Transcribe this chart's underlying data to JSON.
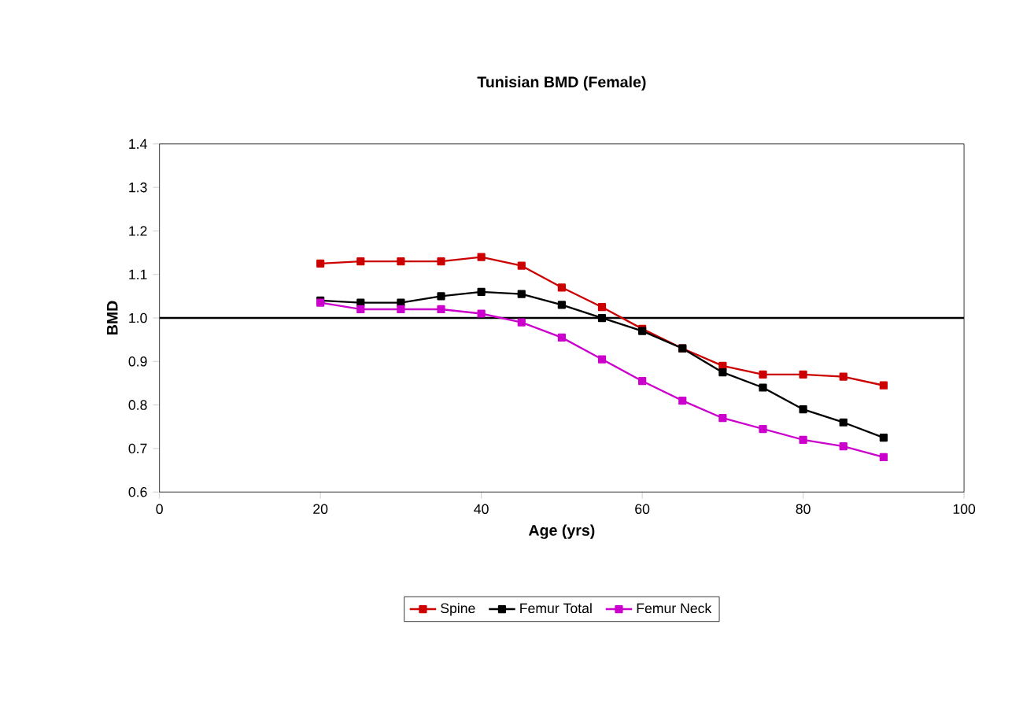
{
  "chart_data": {
    "type": "line",
    "title": "Tunisian BMD (Female)",
    "xlabel": "Age (yrs)",
    "ylabel": "BMD",
    "x": [
      20,
      25,
      30,
      35,
      40,
      45,
      50,
      55,
      60,
      65,
      70,
      75,
      80,
      85,
      90
    ],
    "series": [
      {
        "name": "Spine",
        "color": "#cc0000",
        "values": [
          1.125,
          1.13,
          1.13,
          1.13,
          1.14,
          1.12,
          1.07,
          1.025,
          0.975,
          0.93,
          0.89,
          0.87,
          0.87,
          0.865,
          0.845
        ]
      },
      {
        "name": "Femur Total",
        "color": "#000000",
        "values": [
          1.04,
          1.035,
          1.035,
          1.05,
          1.06,
          1.055,
          1.03,
          1.0,
          0.97,
          0.93,
          0.875,
          0.84,
          0.79,
          0.76,
          0.725
        ]
      },
      {
        "name": "Femur Neck",
        "color": "#cc00cc",
        "values": [
          1.035,
          1.02,
          1.02,
          1.02,
          1.01,
          0.99,
          0.955,
          0.905,
          0.855,
          0.81,
          0.77,
          0.745,
          0.72,
          0.705,
          0.68
        ]
      }
    ],
    "xlim": [
      0,
      100
    ],
    "xticks": [
      0,
      20,
      40,
      60,
      80,
      100
    ],
    "ylim": [
      0.6,
      1.4
    ],
    "yticks": [
      0.6,
      0.7,
      0.8,
      0.9,
      {
        "value": 1.0,
        "label": "1.0"
      },
      1.1,
      1.2,
      1.3,
      1.4
    ],
    "ref_lines": [
      {
        "axis": "y",
        "value": 1.0,
        "color": "#000000"
      }
    ],
    "legend": "bottom",
    "marker": "square",
    "line_style": "solid",
    "grid": false
  }
}
